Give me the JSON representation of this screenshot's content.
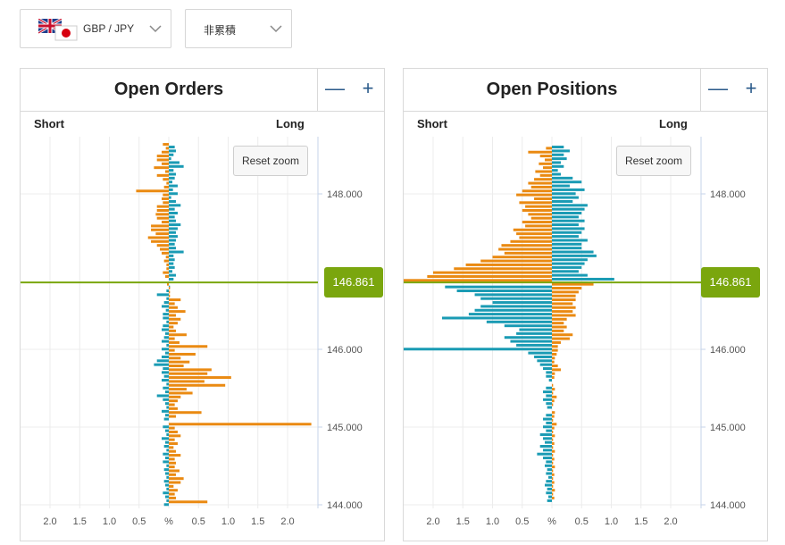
{
  "pair_selector": {
    "label": "GBP / JPY",
    "flag_icon": "uk-japan-flag-icon"
  },
  "mode_selector": {
    "label": "非累積"
  },
  "current_price": "146.861",
  "panels": [
    {
      "title": "Open Orders",
      "short_label": "Short",
      "long_label": "Long",
      "reset_label": "Reset zoom",
      "zoom_out": "—",
      "zoom_in": "+"
    },
    {
      "title": "Open Positions",
      "short_label": "Short",
      "long_label": "Long",
      "reset_label": "Reset zoom",
      "zoom_out": "—",
      "zoom_in": "+"
    }
  ],
  "chart_data": [
    {
      "type": "bar",
      "title": "Open Orders",
      "orientation": "horizontal",
      "x_ticks": [
        "2.0",
        "1.5",
        "1.0",
        "0.5",
        "%",
        "0.5",
        "1.0",
        "1.5",
        "2.0"
      ],
      "y_ticks": [
        "148.000",
        "146.000",
        "145.000",
        "144.000"
      ],
      "y_range": [
        143.95,
        148.7
      ],
      "current_price": 146.861,
      "colors": {
        "orange": "#ea8a12",
        "teal": "#1a9bb4"
      },
      "bars": [
        {
          "p": 148.62,
          "o": -0.1,
          "t": 0.1
        },
        {
          "p": 148.57,
          "o": -0.05,
          "t": 0.12
        },
        {
          "p": 148.52,
          "o": -0.12,
          "t": 0.08
        },
        {
          "p": 148.47,
          "o": -0.2,
          "t": 0.04
        },
        {
          "p": 148.42,
          "o": -0.2,
          "t": 0.18
        },
        {
          "p": 148.37,
          "o": -0.12,
          "t": 0.25
        },
        {
          "p": 148.32,
          "o": -0.25,
          "t": 0.08
        },
        {
          "p": 148.27,
          "o": -0.06,
          "t": 0.12
        },
        {
          "p": 148.22,
          "o": -0.2,
          "t": 0.1
        },
        {
          "p": 148.17,
          "o": -0.1,
          "t": 0.06
        },
        {
          "p": 148.12,
          "o": -0.04,
          "t": 0.15
        },
        {
          "p": 148.07,
          "o": -0.08,
          "t": 0.07
        },
        {
          "p": 148.02,
          "o": -0.55,
          "t": 0.15
        },
        {
          "p": 147.97,
          "o": -0.1,
          "t": 0.04
        },
        {
          "p": 147.92,
          "o": -0.12,
          "t": 0.12
        },
        {
          "p": 147.87,
          "o": -0.1,
          "t": 0.2
        },
        {
          "p": 147.82,
          "o": -0.2,
          "t": 0.1
        },
        {
          "p": 147.77,
          "o": -0.2,
          "t": 0.15
        },
        {
          "p": 147.72,
          "o": -0.22,
          "t": 0.1
        },
        {
          "p": 147.67,
          "o": -0.2,
          "t": 0.12
        },
        {
          "p": 147.62,
          "o": -0.12,
          "t": 0.2
        },
        {
          "p": 147.57,
          "o": -0.3,
          "t": 0.15
        },
        {
          "p": 147.52,
          "o": -0.3,
          "t": 0.12
        },
        {
          "p": 147.47,
          "o": -0.22,
          "t": 0.15
        },
        {
          "p": 147.42,
          "o": -0.35,
          "t": 0.12
        },
        {
          "p": 147.37,
          "o": -0.3,
          "t": 0.1
        },
        {
          "p": 147.32,
          "o": -0.2,
          "t": 0.12
        },
        {
          "p": 147.27,
          "o": -0.15,
          "t": 0.25
        },
        {
          "p": 147.22,
          "o": -0.12,
          "t": 0.08
        },
        {
          "p": 147.17,
          "o": -0.05,
          "t": 0.1
        },
        {
          "p": 147.12,
          "o": -0.08,
          "t": 0.08
        },
        {
          "p": 147.07,
          "o": -0.04,
          "t": 0.1
        },
        {
          "p": 147.02,
          "o": -0.04,
          "t": 0.06
        },
        {
          "p": 146.97,
          "o": -0.1,
          "t": 0.12
        },
        {
          "p": 146.92,
          "o": -0.06,
          "t": 0.08
        },
        {
          "p": 146.82,
          "o": -0.03,
          "t": 0.02
        },
        {
          "p": 146.77,
          "o": 0.02,
          "t": -0.04
        },
        {
          "p": 146.72,
          "o": 0.02,
          "t": -0.2
        },
        {
          "p": 146.67,
          "o": 0.02,
          "t": -0.04
        },
        {
          "p": 146.62,
          "o": 0.2,
          "t": -0.08
        },
        {
          "p": 146.57,
          "o": 0.1,
          "t": -0.12
        },
        {
          "p": 146.52,
          "o": 0.15,
          "t": -0.05
        },
        {
          "p": 146.47,
          "o": 0.28,
          "t": -0.1
        },
        {
          "p": 146.42,
          "o": 0.12,
          "t": -0.1
        },
        {
          "p": 146.37,
          "o": 0.2,
          "t": -0.04
        },
        {
          "p": 146.32,
          "o": 0.15,
          "t": -0.1
        },
        {
          "p": 146.27,
          "o": 0.08,
          "t": -0.12
        },
        {
          "p": 146.22,
          "o": 0.12,
          "t": -0.06
        },
        {
          "p": 146.17,
          "o": 0.3,
          "t": -0.08
        },
        {
          "p": 146.12,
          "o": 0.1,
          "t": -0.12
        },
        {
          "p": 146.07,
          "o": 0.18,
          "t": -0.04
        },
        {
          "p": 146.02,
          "o": 0.65,
          "t": -0.12
        },
        {
          "p": 145.97,
          "o": 0.1,
          "t": -0.06
        },
        {
          "p": 145.92,
          "o": 0.45,
          "t": -0.12
        },
        {
          "p": 145.87,
          "o": 0.2,
          "t": -0.2
        },
        {
          "p": 145.82,
          "o": 0.35,
          "t": -0.25
        },
        {
          "p": 145.77,
          "o": 0.25,
          "t": -0.1
        },
        {
          "p": 145.72,
          "o": 0.72,
          "t": -0.12
        },
        {
          "p": 145.67,
          "o": 0.65,
          "t": -0.08
        },
        {
          "p": 145.62,
          "o": 1.05,
          "t": -0.12
        },
        {
          "p": 145.57,
          "o": 0.6,
          "t": -0.04
        },
        {
          "p": 145.52,
          "o": 0.95,
          "t": -0.1
        },
        {
          "p": 145.47,
          "o": 0.3,
          "t": -0.06
        },
        {
          "p": 145.42,
          "o": 0.4,
          "t": -0.2
        },
        {
          "p": 145.37,
          "o": 0.2,
          "t": -0.1
        },
        {
          "p": 145.32,
          "o": 0.15,
          "t": -0.06
        },
        {
          "p": 145.27,
          "o": 0.1,
          "t": -0.04
        },
        {
          "p": 145.22,
          "o": 0.15,
          "t": -0.12
        },
        {
          "p": 145.17,
          "o": 0.55,
          "t": -0.06
        },
        {
          "p": 145.12,
          "o": 0.12,
          "t": -0.08
        },
        {
          "p": 145.02,
          "o": 2.4,
          "t": -0.1
        },
        {
          "p": 144.97,
          "o": 0.1,
          "t": -0.06
        },
        {
          "p": 144.92,
          "o": 0.15,
          "t": -0.04
        },
        {
          "p": 144.87,
          "o": 0.2,
          "t": -0.12
        },
        {
          "p": 144.82,
          "o": 0.1,
          "t": -0.06
        },
        {
          "p": 144.77,
          "o": 0.15,
          "t": -0.08
        },
        {
          "p": 144.72,
          "o": 0.08,
          "t": -0.04
        },
        {
          "p": 144.67,
          "o": 0.12,
          "t": -0.1
        },
        {
          "p": 144.62,
          "o": 0.2,
          "t": -0.06
        },
        {
          "p": 144.57,
          "o": 0.1,
          "t": -0.1
        },
        {
          "p": 144.52,
          "o": 0.12,
          "t": -0.04
        },
        {
          "p": 144.47,
          "o": 0.1,
          "t": -0.08
        },
        {
          "p": 144.42,
          "o": 0.18,
          "t": -0.06
        },
        {
          "p": 144.37,
          "o": 0.12,
          "t": -0.04
        },
        {
          "p": 144.32,
          "o": 0.25,
          "t": -0.08
        },
        {
          "p": 144.27,
          "o": 0.2,
          "t": -0.06
        },
        {
          "p": 144.22,
          "o": 0.08,
          "t": -0.04
        },
        {
          "p": 144.17,
          "o": 0.15,
          "t": -0.1
        },
        {
          "p": 144.12,
          "o": 0.1,
          "t": -0.06
        },
        {
          "p": 144.07,
          "o": 0.12,
          "t": -0.04
        },
        {
          "p": 144.02,
          "o": 0.65,
          "t": -0.08
        }
      ]
    },
    {
      "type": "bar",
      "title": "Open Positions",
      "orientation": "horizontal",
      "x_ticks": [
        "2.0",
        "1.5",
        "1.0",
        "0.5",
        "%",
        "0.5",
        "1.0",
        "1.5",
        "2.0"
      ],
      "y_ticks": [
        "148.000",
        "146.000",
        "145.000",
        "144.000"
      ],
      "y_range": [
        143.95,
        148.7
      ],
      "current_price": 146.861,
      "colors": {
        "orange": "#ea8a12",
        "teal": "#1a9bb4"
      },
      "bars": [
        {
          "p": 148.62,
          "o": 0,
          "t": 0.2
        },
        {
          "p": 148.57,
          "o": -0.1,
          "t": 0.3
        },
        {
          "p": 148.52,
          "o": -0.4,
          "t": 0.2
        },
        {
          "p": 148.47,
          "o": -0.2,
          "t": 0.25
        },
        {
          "p": 148.42,
          "o": -0.12,
          "t": 0.15
        },
        {
          "p": 148.37,
          "o": -0.22,
          "t": 0.2
        },
        {
          "p": 148.32,
          "o": -0.15,
          "t": 0.1
        },
        {
          "p": 148.27,
          "o": -0.28,
          "t": 0.15
        },
        {
          "p": 148.22,
          "o": -0.2,
          "t": 0.35
        },
        {
          "p": 148.17,
          "o": -0.3,
          "t": 0.5
        },
        {
          "p": 148.12,
          "o": -0.4,
          "t": 0.3
        },
        {
          "p": 148.07,
          "o": -0.35,
          "t": 0.55
        },
        {
          "p": 148.02,
          "o": -0.5,
          "t": 0.4
        },
        {
          "p": 147.97,
          "o": -0.6,
          "t": 0.45
        },
        {
          "p": 147.92,
          "o": -0.3,
          "t": 0.35
        },
        {
          "p": 147.87,
          "o": -0.55,
          "t": 0.6
        },
        {
          "p": 147.82,
          "o": -0.45,
          "t": 0.55
        },
        {
          "p": 147.77,
          "o": -0.5,
          "t": 0.5
        },
        {
          "p": 147.72,
          "o": -0.4,
          "t": 0.45
        },
        {
          "p": 147.67,
          "o": -0.35,
          "t": 0.55
        },
        {
          "p": 147.62,
          "o": -0.5,
          "t": 0.45
        },
        {
          "p": 147.57,
          "o": -0.45,
          "t": 0.55
        },
        {
          "p": 147.52,
          "o": -0.65,
          "t": 0.5
        },
        {
          "p": 147.47,
          "o": -0.6,
          "t": 0.45
        },
        {
          "p": 147.42,
          "o": -0.55,
          "t": 0.6
        },
        {
          "p": 147.37,
          "o": -0.7,
          "t": 0.5
        },
        {
          "p": 147.32,
          "o": -0.85,
          "t": 0.5
        },
        {
          "p": 147.27,
          "o": -0.9,
          "t": 0.7
        },
        {
          "p": 147.22,
          "o": -0.8,
          "t": 0.75
        },
        {
          "p": 147.17,
          "o": -1.0,
          "t": 0.6
        },
        {
          "p": 147.12,
          "o": -1.2,
          "t": 0.55
        },
        {
          "p": 147.07,
          "o": -1.45,
          "t": 0.5
        },
        {
          "p": 147.02,
          "o": -1.65,
          "t": 0.45
        },
        {
          "p": 146.97,
          "o": -2.0,
          "t": 0.6
        },
        {
          "p": 146.92,
          "o": -2.1,
          "t": 1.05
        },
        {
          "p": 146.87,
          "o": -2.5,
          "t": 0.6
        },
        {
          "p": 146.82,
          "o": 0.7,
          "t": -1.8
        },
        {
          "p": 146.77,
          "o": 0.5,
          "t": -1.6
        },
        {
          "p": 146.72,
          "o": 0.45,
          "t": -1.3
        },
        {
          "p": 146.67,
          "o": 0.4,
          "t": -1.2
        },
        {
          "p": 146.62,
          "o": 0.4,
          "t": -1.0
        },
        {
          "p": 146.57,
          "o": 0.35,
          "t": -1.2
        },
        {
          "p": 146.52,
          "o": 0.4,
          "t": -1.3
        },
        {
          "p": 146.47,
          "o": 0.35,
          "t": -1.4
        },
        {
          "p": 146.42,
          "o": 0.4,
          "t": -1.85
        },
        {
          "p": 146.37,
          "o": 0.25,
          "t": -1.1
        },
        {
          "p": 146.32,
          "o": 0.2,
          "t": -0.8
        },
        {
          "p": 146.27,
          "o": 0.25,
          "t": -0.55
        },
        {
          "p": 146.22,
          "o": 0.2,
          "t": -0.6
        },
        {
          "p": 146.17,
          "o": 0.35,
          "t": -0.8
        },
        {
          "p": 146.12,
          "o": 0.3,
          "t": -0.7
        },
        {
          "p": 146.07,
          "o": 0.15,
          "t": -0.6
        },
        {
          "p": 146.02,
          "o": 0.1,
          "t": -2.5
        },
        {
          "p": 145.97,
          "o": 0.1,
          "t": -0.4
        },
        {
          "p": 145.92,
          "o": 0.08,
          "t": -0.3
        },
        {
          "p": 145.87,
          "o": 0.05,
          "t": -0.25
        },
        {
          "p": 145.82,
          "o": 0.04,
          "t": -0.2
        },
        {
          "p": 145.77,
          "o": 0.1,
          "t": -0.15
        },
        {
          "p": 145.72,
          "o": 0.15,
          "t": -0.1
        },
        {
          "p": 145.67,
          "o": 0.05,
          "t": -0.1
        },
        {
          "p": 145.62,
          "o": 0.04,
          "t": -0.05
        },
        {
          "p": 145.52,
          "o": 0.02,
          "t": -0.1
        },
        {
          "p": 145.47,
          "o": 0.05,
          "t": -0.15
        },
        {
          "p": 145.42,
          "o": 0.02,
          "t": -0.1
        },
        {
          "p": 145.37,
          "o": 0.08,
          "t": -0.15
        },
        {
          "p": 145.32,
          "o": 0.04,
          "t": -0.1
        },
        {
          "p": 145.27,
          "o": 0.02,
          "t": -0.08
        },
        {
          "p": 145.17,
          "o": 0.05,
          "t": -0.1
        },
        {
          "p": 145.12,
          "o": 0.04,
          "t": -0.15
        },
        {
          "p": 145.07,
          "o": 0.02,
          "t": -0.1
        },
        {
          "p": 145.02,
          "o": 0.08,
          "t": -0.15
        },
        {
          "p": 144.97,
          "o": 0.04,
          "t": -0.1
        },
        {
          "p": 144.92,
          "o": 0.02,
          "t": -0.2
        },
        {
          "p": 144.87,
          "o": 0.05,
          "t": -0.15
        },
        {
          "p": 144.82,
          "o": 0.02,
          "t": -0.12
        },
        {
          "p": 144.77,
          "o": 0.04,
          "t": -0.2
        },
        {
          "p": 144.72,
          "o": 0.02,
          "t": -0.15
        },
        {
          "p": 144.67,
          "o": 0.05,
          "t": -0.25
        },
        {
          "p": 144.62,
          "o": 0.02,
          "t": -0.15
        },
        {
          "p": 144.57,
          "o": 0.04,
          "t": -0.1
        },
        {
          "p": 144.52,
          "o": 0.02,
          "t": -0.12
        },
        {
          "p": 144.47,
          "o": 0.05,
          "t": -0.08
        },
        {
          "p": 144.42,
          "o": 0.02,
          "t": -0.1
        },
        {
          "p": 144.37,
          "o": 0.04,
          "t": -0.06
        },
        {
          "p": 144.32,
          "o": 0.02,
          "t": -0.1
        },
        {
          "p": 144.27,
          "o": 0.04,
          "t": -0.12
        },
        {
          "p": 144.22,
          "o": 0.02,
          "t": -0.08
        },
        {
          "p": 144.17,
          "o": 0.05,
          "t": -0.1
        },
        {
          "p": 144.12,
          "o": 0.02,
          "t": -0.06
        },
        {
          "p": 144.07,
          "o": 0.04,
          "t": -0.08
        }
      ]
    }
  ]
}
